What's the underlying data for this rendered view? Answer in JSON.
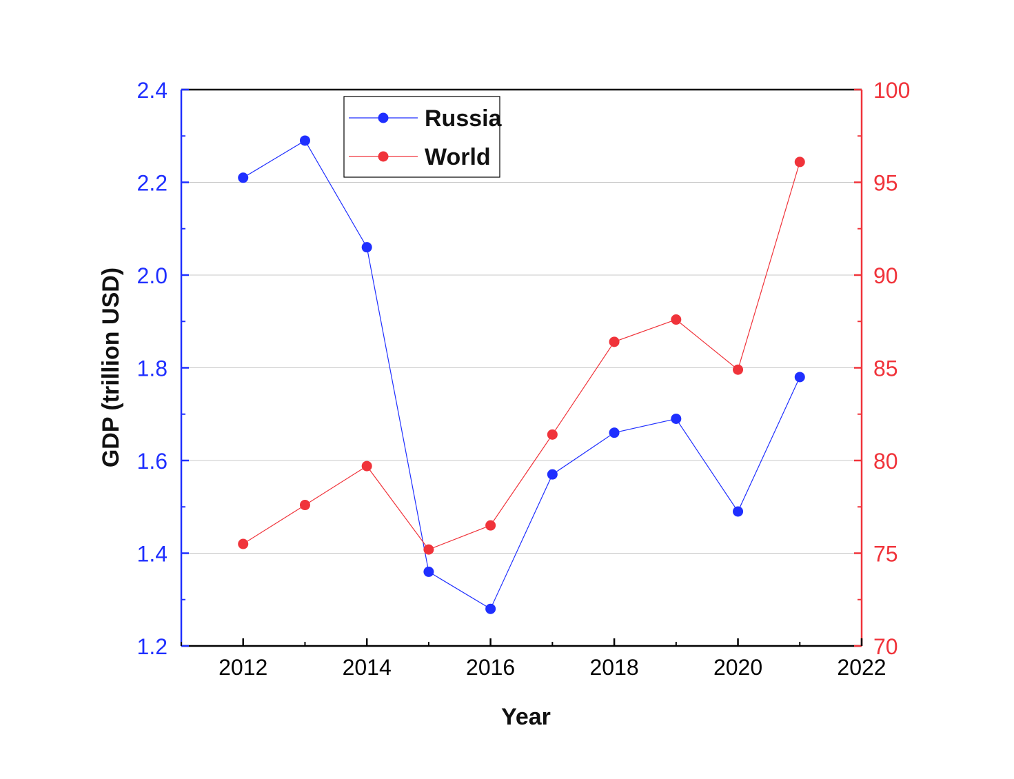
{
  "chart_data": {
    "type": "line",
    "title": "",
    "xlabel": "Year",
    "ylabel": "GDP (trillion USD)",
    "y2label": "",
    "xlim": [
      2011,
      2022
    ],
    "ylim": [
      1.2,
      2.4
    ],
    "y2lim": [
      70,
      100
    ],
    "x_ticks": [
      2012,
      2014,
      2016,
      2018,
      2020,
      2022
    ],
    "y_ticks": [
      "1.2",
      "1.4",
      "1.6",
      "1.8",
      "2.0",
      "2.2",
      "2.4"
    ],
    "y2_ticks": [
      "70",
      "75",
      "80",
      "85",
      "90",
      "95",
      "100"
    ],
    "grid": true,
    "legend_position": "top-left",
    "x": [
      2012,
      2013,
      2014,
      2015,
      2016,
      2017,
      2018,
      2019,
      2020,
      2021
    ],
    "series": [
      {
        "name": "Russia",
        "axis": "left",
        "color": "#1f2fff",
        "values": [
          2.21,
          2.29,
          2.06,
          1.36,
          1.28,
          1.57,
          1.66,
          1.69,
          1.49,
          1.78
        ]
      },
      {
        "name": "World",
        "axis": "right",
        "color": "#f0333a",
        "values": [
          75.5,
          77.6,
          79.7,
          75.2,
          76.5,
          81.4,
          86.4,
          87.6,
          84.9,
          96.1
        ]
      }
    ]
  }
}
